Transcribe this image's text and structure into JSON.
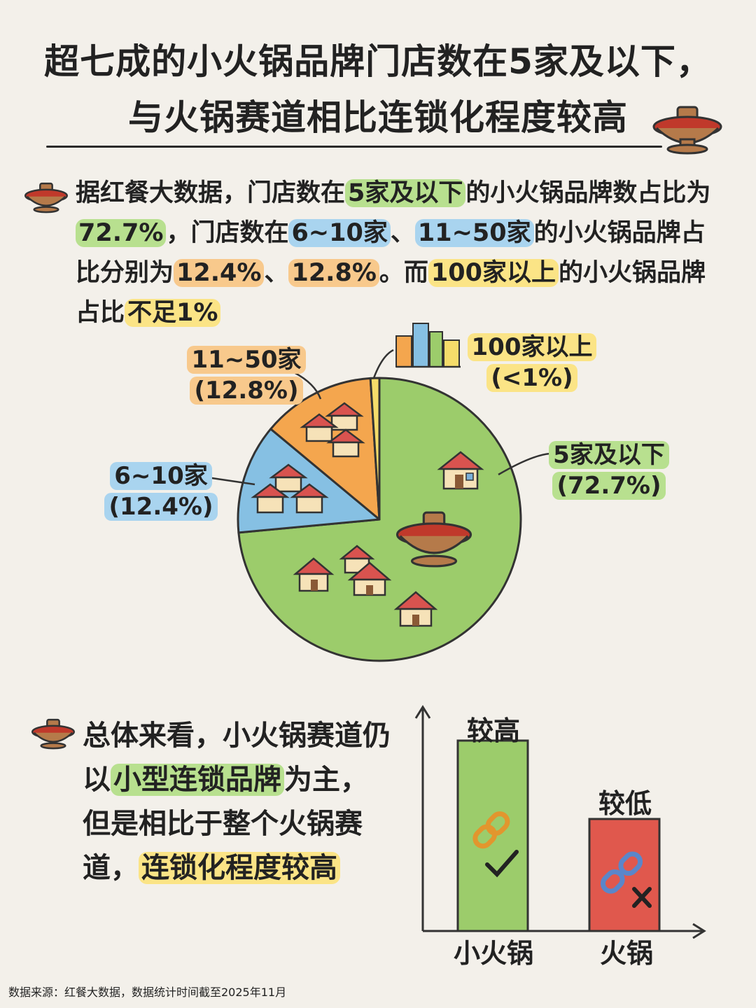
{
  "title": {
    "line1": "超七成的小火锅品牌门店数在5家及以下，",
    "line2": "与火锅赛道相比连锁化程度较高"
  },
  "intro": {
    "t1": "据红餐大数据，门店数在",
    "h1": "5家及以下",
    "t2": "的小火锅品牌数占比为",
    "h2": "72.7%",
    "t3": "，门店数在",
    "h3": "6~10家",
    "t4": "、",
    "h4": "11~50家",
    "t5": "的小火锅品牌占比分别为",
    "h5": "12.4%",
    "t6": "、",
    "h6": "12.8%",
    "t7": "。而",
    "h7": "100家以上",
    "t8": "的小火锅品牌占比",
    "h8": "不足1%"
  },
  "chart_data": [
    {
      "type": "pie",
      "slices": [
        {
          "label": "5家及以下",
          "value_label": "(72.7%)",
          "value": 72.7,
          "color": "#9ccc6b"
        },
        {
          "label": "6~10家",
          "value_label": "(12.4%)",
          "value": 12.4,
          "color": "#86c0e3"
        },
        {
          "label": "11~50家",
          "value_label": "(12.8%)",
          "value": 12.8,
          "color": "#f4a64e"
        },
        {
          "label": "100家以上",
          "value_label": "(<1%)",
          "value": 1,
          "color": "#f5dc6a"
        }
      ],
      "label_colors": {
        "5家及以下": "#b8e08f",
        "6~10家": "#a9d4ef",
        "11~50家": "#f8c98c",
        "100家以上": "#fbe486"
      }
    },
    {
      "type": "bar",
      "categories": [
        "小火锅",
        "火锅"
      ],
      "value_labels": [
        "较高",
        "较低"
      ],
      "levels": [
        0.85,
        0.5
      ],
      "colors": [
        "#9ccc6b",
        "#e0584d"
      ]
    }
  ],
  "summary": {
    "t1": "总体来看，小火锅赛道仍以",
    "h1": "小型连锁品牌",
    "t2": "为主，但是相比于整个火锅赛道，",
    "h2": "连锁化程度较高"
  },
  "footer": "数据来源：红餐大数据，数据统计时间截至2025年11月",
  "icons": [
    "hotpot-icon",
    "house-icon",
    "city-icon",
    "chain-icon",
    "check-icon",
    "cross-icon"
  ]
}
